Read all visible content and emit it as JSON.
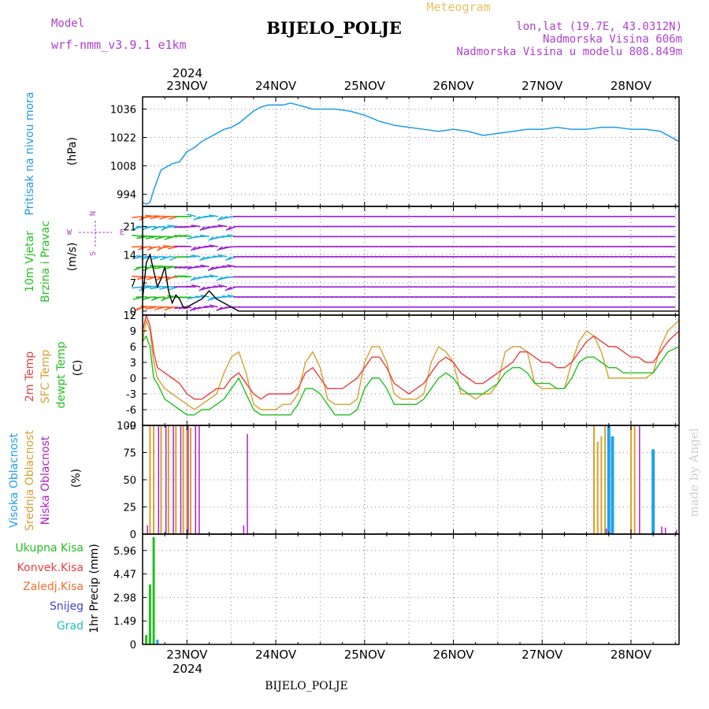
{
  "header": {
    "model_label": "Model",
    "model_name": "wrf-nmm_v3.9.1 e1km",
    "title": "BIJELO_POLJE",
    "meteogram_label": "Meteogram",
    "location": "lon,lat (19.7E, 43.0312N)",
    "elevation": "Nadmorska Visina 606m",
    "model_elevation": "Nadmorska Visina u modelu 808.849m",
    "footer_station": "BIJELO_POLJE",
    "watermark": "made by Angel"
  },
  "colors": {
    "pressure": "#1e9be6",
    "wind_green": "#22c022",
    "wind_label_purple": "#b040d0",
    "temp_red": "#e84040",
    "sfc_orange": "#d8a030",
    "dewpt_green": "#22c022",
    "cloud_high": "#20a0f0",
    "cloud_mid": "#d8a030",
    "cloud_low": "#b020c0",
    "precip_total": "#22c022",
    "precip_conv": "#e84040",
    "precip_frz": "#f07030",
    "precip_snow": "#4040e0",
    "precip_hail": "#20c0c0",
    "wind_barb": "#9a20d0"
  },
  "time_axis": {
    "year": "2024",
    "dates": [
      "23NOV",
      "24NOV",
      "25NOV",
      "26NOV",
      "27NOV",
      "28NOV"
    ]
  },
  "panels": {
    "pressure": {
      "label": "Pritisak na nivou mora",
      "unit": "(hPa)",
      "ticks": [
        "994",
        "1008",
        "1022",
        "1036"
      ]
    },
    "wind": {
      "label1": "10m Vjetar",
      "label2": "Brzina i Pravac",
      "unit": "(m/s)",
      "ticks": [
        "0",
        "7",
        "14",
        "21"
      ],
      "compass": {
        "n": "N",
        "s": "S",
        "e": "E",
        "w": "W"
      }
    },
    "temp": {
      "label1": "2m Temp",
      "label2": "SFC Temp",
      "label3": "dewpt Temp",
      "unit": "(C)",
      "ticks": [
        "-9",
        "-6",
        "-3",
        "0",
        "3",
        "6",
        "9",
        "12"
      ]
    },
    "cloud": {
      "label1": "Visoka Oblacnost",
      "label2": "Srednja Oblacnost",
      "label3": "Niska Oblacnost",
      "unit": "(%)",
      "ticks": [
        "0",
        "25",
        "50",
        "75",
        "100"
      ]
    },
    "precip": {
      "legend": [
        "Ukupna Kisa",
        "Konvek.Kisa",
        "Zaledj.Kisa",
        "Snijeg",
        "Grad"
      ],
      "unit": "1hr Precip (mm)",
      "ticks": [
        "0",
        "1.49",
        "2.98",
        "4.47",
        "5.96"
      ]
    }
  },
  "chart_data": {
    "type": "line",
    "x_unit": "hours since 2024-11-22 12:00 UTC",
    "x_range": [
      0,
      145
    ],
    "pressure": {
      "ylim": [
        988,
        1042
      ],
      "x": [
        0,
        1,
        2,
        3,
        4,
        5,
        6,
        8,
        10,
        12,
        14,
        16,
        18,
        20,
        22,
        24,
        26,
        28,
        30,
        32,
        34,
        36,
        38,
        40,
        42,
        44,
        46,
        48,
        52,
        56,
        60,
        64,
        68,
        72,
        76,
        80,
        84,
        88,
        92,
        96,
        100,
        104,
        108,
        112,
        116,
        120,
        124,
        128,
        132,
        136,
        140,
        142,
        144,
        145
      ],
      "values": [
        990,
        989,
        990,
        996,
        1001,
        1006,
        1007,
        1009,
        1010,
        1015,
        1017,
        1020,
        1022,
        1024,
        1026,
        1027,
        1029,
        1032,
        1035,
        1037,
        1038,
        1038,
        1038,
        1039,
        1038,
        1037,
        1036,
        1036,
        1036,
        1035,
        1033,
        1030,
        1028,
        1027,
        1026,
        1025,
        1026,
        1025,
        1023,
        1024,
        1025,
        1026,
        1026,
        1027,
        1026,
        1026,
        1027,
        1027,
        1026,
        1026,
        1025,
        1023,
        1021,
        1020
      ]
    },
    "wind_speed": {
      "ylim": [
        -1,
        26
      ],
      "x": [
        0,
        1,
        2,
        3,
        4,
        5,
        6,
        7,
        8,
        9,
        10,
        11,
        12,
        14,
        16,
        18,
        20,
        22,
        24,
        26,
        145
      ],
      "values": [
        3,
        12,
        14,
        10,
        6,
        8,
        11,
        5,
        2,
        4,
        3,
        1,
        1,
        2,
        3,
        5,
        3,
        2,
        1,
        0,
        0
      ]
    },
    "temperature": {
      "ylim": [
        -9,
        12
      ],
      "x": [
        0,
        1,
        2,
        3,
        4,
        6,
        8,
        10,
        12,
        14,
        16,
        18,
        20,
        22,
        24,
        26,
        28,
        30,
        32,
        34,
        36,
        38,
        40,
        42,
        44,
        46,
        48,
        50,
        52,
        54,
        56,
        58,
        60,
        62,
        64,
        66,
        68,
        70,
        72,
        74,
        76,
        78,
        80,
        82,
        84,
        86,
        88,
        90,
        92,
        94,
        96,
        98,
        100,
        102,
        104,
        106,
        108,
        110,
        112,
        114,
        116,
        118,
        120,
        122,
        124,
        126,
        128,
        130,
        132,
        134,
        136,
        138,
        140,
        142,
        145
      ],
      "t2m": [
        9,
        12,
        10,
        5,
        2,
        1,
        0,
        -1,
        -3,
        -4,
        -4,
        -3,
        -2,
        -2,
        0,
        1,
        -1,
        -3,
        -4,
        -3,
        -3,
        -3,
        -3,
        -2,
        1,
        2,
        0,
        -2,
        -2,
        -2,
        -1,
        0,
        2,
        4,
        4,
        2,
        -1,
        -2,
        -3,
        -2,
        -1,
        1,
        3,
        4,
        3,
        1,
        0,
        -1,
        -1,
        0,
        1,
        2,
        3,
        5,
        5,
        4,
        3,
        3,
        2,
        2,
        3,
        5,
        7,
        8,
        7,
        6,
        6,
        5,
        4,
        4,
        3,
        3,
        5,
        7,
        9
      ],
      "sfc": [
        7,
        11,
        9,
        3,
        0,
        -2,
        -3,
        -4,
        -5,
        -6,
        -5,
        -4,
        -3,
        1,
        4,
        5,
        1,
        -5,
        -6,
        -6,
        -6,
        -5,
        -5,
        -3,
        3,
        5,
        2,
        -4,
        -5,
        -5,
        -5,
        -4,
        3,
        6,
        6,
        3,
        -3,
        -4,
        -4,
        -4,
        -3,
        3,
        6,
        5,
        3,
        -3,
        -3,
        -4,
        -3,
        -3,
        -1,
        5,
        6,
        6,
        5,
        -1,
        -2,
        -2,
        -2,
        -2,
        3,
        7,
        9,
        8,
        5,
        0,
        0,
        0,
        0,
        0,
        0,
        1,
        6,
        9,
        11
      ],
      "dewpt": [
        7,
        8,
        6,
        0,
        -1,
        -4,
        -5,
        -6,
        -7,
        -7,
        -6,
        -6,
        -5,
        -4,
        -2,
        0,
        -3,
        -6,
        -7,
        -7,
        -7,
        -7,
        -7,
        -5,
        -2,
        -2,
        -3,
        -5,
        -7,
        -7,
        -7,
        -6,
        -2,
        0,
        0,
        -2,
        -5,
        -5,
        -5,
        -5,
        -4,
        -2,
        0,
        1,
        0,
        -2,
        -3,
        -3,
        -3,
        -2,
        -1,
        1,
        2,
        2,
        1,
        -1,
        -1,
        -1,
        -2,
        -2,
        0,
        3,
        4,
        4,
        3,
        2,
        2,
        1,
        1,
        1,
        1,
        1,
        3,
        5,
        6
      ]
    },
    "clouds": {
      "ylim": [
        0,
        100
      ],
      "high": [
        {
          "x": 126,
          "v": 100
        },
        {
          "x": 127,
          "v": 90
        },
        {
          "x": 138,
          "v": 78
        }
      ],
      "mid": [
        {
          "x": 2,
          "v": 100
        },
        {
          "x": 3,
          "v": 100
        },
        {
          "x": 5,
          "v": 100
        },
        {
          "x": 7,
          "v": 100
        },
        {
          "x": 9,
          "v": 100
        },
        {
          "x": 11,
          "v": 100
        },
        {
          "x": 12,
          "v": 100
        },
        {
          "x": 13,
          "v": 98
        },
        {
          "x": 122,
          "v": 100
        },
        {
          "x": 123,
          "v": 85
        },
        {
          "x": 124,
          "v": 90
        },
        {
          "x": 125,
          "v": 100
        },
        {
          "x": 132,
          "v": 100
        },
        {
          "x": 133,
          "v": 100
        }
      ],
      "low": [
        {
          "x": 1,
          "v": 8
        },
        {
          "x": 4,
          "v": 100
        },
        {
          "x": 6,
          "v": 100
        },
        {
          "x": 8,
          "v": 100
        },
        {
          "x": 10,
          "v": 100
        },
        {
          "x": 12,
          "v": 100
        },
        {
          "x": 14,
          "v": 100
        },
        {
          "x": 15,
          "v": 100
        },
        {
          "x": 27,
          "v": 8
        },
        {
          "x": 28,
          "v": 92
        },
        {
          "x": 125,
          "v": 5
        },
        {
          "x": 134,
          "v": 100
        },
        {
          "x": 140,
          "v": 7
        },
        {
          "x": 141,
          "v": 6
        },
        {
          "x": 144,
          "v": 4
        }
      ]
    },
    "precip": {
      "ylim": [
        0,
        7.0
      ],
      "total": [
        {
          "x": 1,
          "v": 0.6
        },
        {
          "x": 2,
          "v": 3.8
        },
        {
          "x": 3,
          "v": 6.8
        }
      ],
      "snow": [
        {
          "x": 4,
          "v": 0.3
        }
      ]
    }
  }
}
